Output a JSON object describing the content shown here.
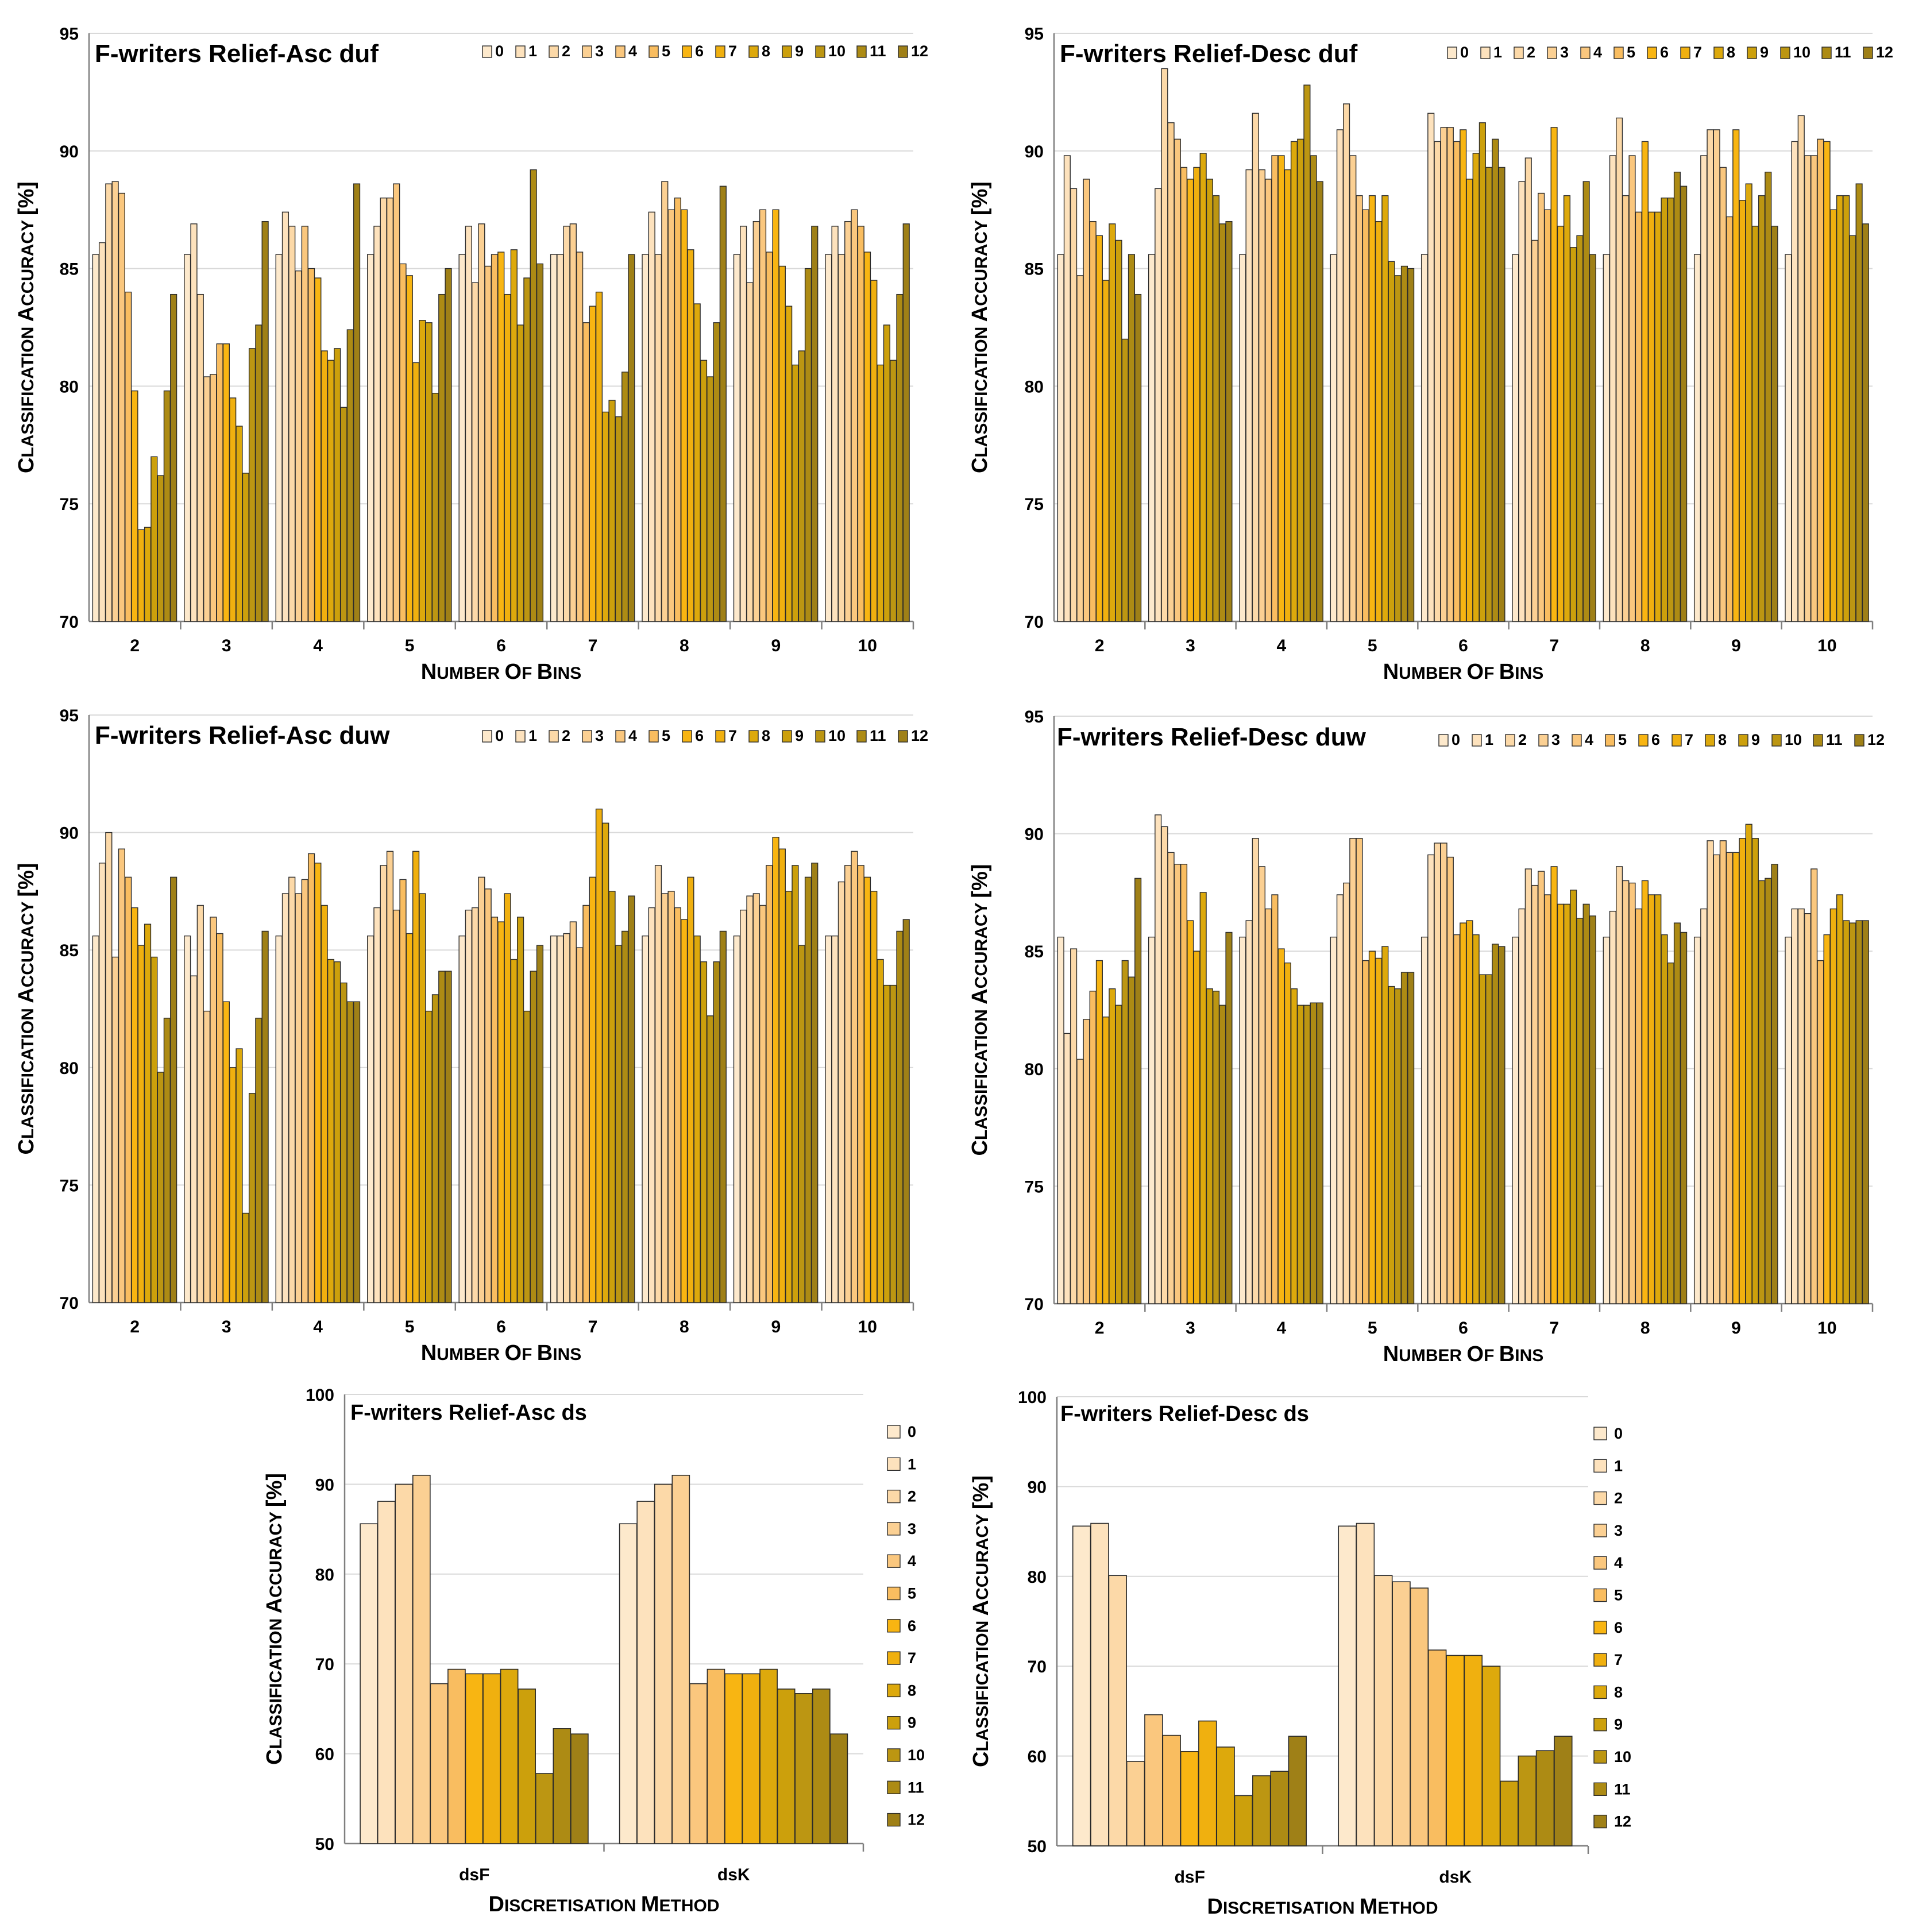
{
  "chart_data": [
    {
      "id": "asc-duf",
      "type": "bar",
      "title": "F-writers Relief-Asc duf",
      "xlabel": "Number of bins",
      "ylabel": "Classification accuracy [%]",
      "ylim": [
        70,
        95
      ],
      "yticks": [
        70,
        75,
        80,
        85,
        90,
        95
      ],
      "categories": [
        "2",
        "3",
        "4",
        "5",
        "6",
        "7",
        "8",
        "9",
        "10"
      ],
      "series_names": [
        "0",
        "1",
        "2",
        "3",
        "4",
        "5",
        "6",
        "7",
        "8",
        "9",
        "10",
        "11",
        "12"
      ],
      "values": [
        [
          85.6,
          86.1,
          88.6,
          88.7,
          88.2,
          84.0,
          79.8,
          73.9,
          74.0,
          77.0,
          76.2,
          79.8,
          83.9
        ],
        [
          85.6,
          86.9,
          83.9,
          80.4,
          80.5,
          81.8,
          81.8,
          79.5,
          78.3,
          76.3,
          81.6,
          82.6,
          87.0
        ],
        [
          85.6,
          87.4,
          86.8,
          84.9,
          86.8,
          85.0,
          84.6,
          81.5,
          81.1,
          81.6,
          79.1,
          82.4,
          88.6
        ],
        [
          85.6,
          86.8,
          88.0,
          88.0,
          88.6,
          85.2,
          84.7,
          81.0,
          82.8,
          82.7,
          79.7,
          83.9,
          85.0
        ],
        [
          85.6,
          86.8,
          84.4,
          86.9,
          85.1,
          85.6,
          85.7,
          83.9,
          85.8,
          82.6,
          84.6,
          89.2,
          85.2
        ],
        [
          85.6,
          85.6,
          86.8,
          86.9,
          85.7,
          82.7,
          83.4,
          84.0,
          78.9,
          79.4,
          78.7,
          80.6,
          85.6
        ],
        [
          85.6,
          87.4,
          85.6,
          88.7,
          87.5,
          88.0,
          87.5,
          85.8,
          83.5,
          81.1,
          80.4,
          82.7,
          88.5
        ],
        [
          85.6,
          86.8,
          84.4,
          87.0,
          87.5,
          85.7,
          87.5,
          85.1,
          83.4,
          80.9,
          81.5,
          85.0,
          86.8
        ],
        [
          85.6,
          86.8,
          85.6,
          87.0,
          87.5,
          86.8,
          85.7,
          84.5,
          80.9,
          82.6,
          81.1,
          83.9,
          86.9
        ]
      ]
    },
    {
      "id": "desc-duf",
      "type": "bar",
      "title": "F-writers Relief-Desc duf",
      "xlabel": "Number of bins",
      "ylabel": "Classification accuracy [%]",
      "ylim": [
        70,
        95
      ],
      "yticks": [
        70,
        75,
        80,
        85,
        90,
        95
      ],
      "categories": [
        "2",
        "3",
        "4",
        "5",
        "6",
        "7",
        "8",
        "9",
        "10"
      ],
      "series_names": [
        "0",
        "1",
        "2",
        "3",
        "4",
        "5",
        "6",
        "7",
        "8",
        "9",
        "10",
        "11",
        "12"
      ],
      "values": [
        [
          85.6,
          89.8,
          88.4,
          84.7,
          88.8,
          87.0,
          86.4,
          84.5,
          86.9,
          86.2,
          82.0,
          85.6,
          83.9
        ],
        [
          85.6,
          88.4,
          93.5,
          91.2,
          90.5,
          89.3,
          88.8,
          89.3,
          89.9,
          88.8,
          88.1,
          86.9,
          87.0
        ],
        [
          85.6,
          89.2,
          91.6,
          89.2,
          88.8,
          89.8,
          89.8,
          89.2,
          90.4,
          90.5,
          92.8,
          89.8,
          88.7
        ],
        [
          85.6,
          90.9,
          92.0,
          89.8,
          88.1,
          87.5,
          88.1,
          87.0,
          88.1,
          85.3,
          84.7,
          85.1,
          85.0
        ],
        [
          85.6,
          91.6,
          90.4,
          91.0,
          91.0,
          90.4,
          90.9,
          88.8,
          89.9,
          91.2,
          89.3,
          90.5,
          89.3
        ],
        [
          85.6,
          88.7,
          89.7,
          86.2,
          88.2,
          87.5,
          91.0,
          86.8,
          88.1,
          85.9,
          86.4,
          88.7,
          85.6
        ],
        [
          85.6,
          89.8,
          91.4,
          88.1,
          89.8,
          87.4,
          90.4,
          87.4,
          87.4,
          88.0,
          88.0,
          89.1,
          88.5
        ],
        [
          85.6,
          89.8,
          90.9,
          90.9,
          89.3,
          87.2,
          90.9,
          87.9,
          88.6,
          86.8,
          88.1,
          89.1,
          86.8
        ],
        [
          85.6,
          90.4,
          91.5,
          89.8,
          89.8,
          90.5,
          90.4,
          87.5,
          88.1,
          88.1,
          86.4,
          88.6,
          86.9
        ]
      ]
    },
    {
      "id": "asc-duw",
      "type": "bar",
      "title": "F-writers Relief-Asc duw",
      "xlabel": "Number of bins",
      "ylabel": "Classification accuracy [%]",
      "ylim": [
        70,
        95
      ],
      "yticks": [
        70,
        75,
        80,
        85,
        90,
        95
      ],
      "categories": [
        "2",
        "3",
        "4",
        "5",
        "6",
        "7",
        "8",
        "9",
        "10"
      ],
      "series_names": [
        "0",
        "1",
        "2",
        "3",
        "4",
        "5",
        "6",
        "7",
        "8",
        "9",
        "10",
        "11",
        "12"
      ],
      "values": [
        [
          85.6,
          88.7,
          90.0,
          84.7,
          89.3,
          88.1,
          86.8,
          85.2,
          86.1,
          84.7,
          79.8,
          82.1,
          88.1
        ],
        [
          85.6,
          83.9,
          86.9,
          82.4,
          86.4,
          85.7,
          82.8,
          80.0,
          80.8,
          73.8,
          78.9,
          82.1,
          85.8
        ],
        [
          85.6,
          87.4,
          88.1,
          87.4,
          88.0,
          89.1,
          88.7,
          86.9,
          84.6,
          84.5,
          83.6,
          82.8,
          82.8
        ],
        [
          85.6,
          86.8,
          88.6,
          89.2,
          86.7,
          88.0,
          85.7,
          89.2,
          87.4,
          82.4,
          83.1,
          84.1,
          84.1
        ],
        [
          85.6,
          86.7,
          86.8,
          88.1,
          87.6,
          86.4,
          86.2,
          87.4,
          84.6,
          86.4,
          82.4,
          84.1,
          85.2
        ],
        [
          85.6,
          85.6,
          85.7,
          86.2,
          85.1,
          86.9,
          88.1,
          91.0,
          90.4,
          87.5,
          85.2,
          85.8,
          87.3
        ],
        [
          85.6,
          86.8,
          88.6,
          87.4,
          87.5,
          86.8,
          86.3,
          88.1,
          85.6,
          84.5,
          82.2,
          84.5,
          85.8
        ],
        [
          85.6,
          86.7,
          87.3,
          87.4,
          86.9,
          88.6,
          89.8,
          89.3,
          87.5,
          88.6,
          85.2,
          88.1,
          88.7
        ],
        [
          85.6,
          85.6,
          87.9,
          88.6,
          89.2,
          88.6,
          88.1,
          87.5,
          84.6,
          83.5,
          83.5,
          85.8,
          86.3
        ]
      ]
    },
    {
      "id": "desc-duw",
      "type": "bar",
      "title": "F-writers Relief-Desc duw",
      "xlabel": "Number of bins",
      "ylabel": "Classification accuracy [%]",
      "ylim": [
        70,
        95
      ],
      "yticks": [
        70,
        75,
        80,
        85,
        90,
        95
      ],
      "categories": [
        "2",
        "3",
        "4",
        "5",
        "6",
        "7",
        "8",
        "9",
        "10"
      ],
      "series_names": [
        "0",
        "1",
        "2",
        "3",
        "4",
        "5",
        "6",
        "7",
        "8",
        "9",
        "10",
        "11",
        "12"
      ],
      "values": [
        [
          85.6,
          81.5,
          85.1,
          80.4,
          82.1,
          83.3,
          84.6,
          82.2,
          83.4,
          82.7,
          84.6,
          83.9,
          88.1
        ],
        [
          85.6,
          90.8,
          90.3,
          89.2,
          88.7,
          88.7,
          86.3,
          85.0,
          87.5,
          83.4,
          83.3,
          82.7,
          85.8
        ],
        [
          85.6,
          86.3,
          89.8,
          88.6,
          86.8,
          87.4,
          85.1,
          84.5,
          83.4,
          82.7,
          82.7,
          82.8,
          82.8
        ],
        [
          85.6,
          87.4,
          87.9,
          89.8,
          89.8,
          84.6,
          85.0,
          84.7,
          85.2,
          83.5,
          83.4,
          84.1,
          84.1
        ],
        [
          85.6,
          89.1,
          89.6,
          89.6,
          89.0,
          85.7,
          86.2,
          86.3,
          85.7,
          84.0,
          84.0,
          85.3,
          85.2
        ],
        [
          85.6,
          86.8,
          88.5,
          87.8,
          88.4,
          87.4,
          88.6,
          87.0,
          87.0,
          87.6,
          86.4,
          87.0,
          86.5
        ],
        [
          85.6,
          86.7,
          88.6,
          88.0,
          87.9,
          86.8,
          88.0,
          87.4,
          87.4,
          85.7,
          84.5,
          86.2,
          85.8
        ],
        [
          85.6,
          86.8,
          89.7,
          89.1,
          89.7,
          89.2,
          89.2,
          89.8,
          90.4,
          89.8,
          88.0,
          88.1,
          88.7
        ],
        [
          85.6,
          86.8,
          86.8,
          86.6,
          88.5,
          84.6,
          85.7,
          86.8,
          87.4,
          86.3,
          86.2,
          86.3,
          86.3
        ]
      ]
    },
    {
      "id": "asc-ds",
      "type": "bar",
      "title": "F-writers Relief-Asc ds",
      "xlabel": "Discretisation method",
      "ylabel": "Classification accuracy [%]",
      "ylim": [
        50,
        100
      ],
      "yticks": [
        50,
        60,
        70,
        80,
        90,
        100
      ],
      "categories": [
        "dsF",
        "dsK"
      ],
      "series_names": [
        "0",
        "1",
        "2",
        "3",
        "4",
        "5",
        "6",
        "7",
        "8",
        "9",
        "10",
        "11",
        "12"
      ],
      "values": [
        [
          85.6,
          88.1,
          90.0,
          91.0,
          67.8,
          69.4,
          68.9,
          68.9,
          69.4,
          67.2,
          57.8,
          62.8,
          62.2
        ],
        [
          85.6,
          88.1,
          90.0,
          91.0,
          67.8,
          69.4,
          68.9,
          68.9,
          69.4,
          67.2,
          66.7,
          67.2,
          62.2
        ]
      ]
    },
    {
      "id": "desc-ds",
      "type": "bar",
      "title": "F-writers Relief-Desc ds",
      "xlabel": "Discretisation method",
      "ylabel": "Classification accuracy [%]",
      "ylim": [
        50,
        100
      ],
      "yticks": [
        50,
        60,
        70,
        80,
        90,
        100
      ],
      "categories": [
        "dsF",
        "dsK"
      ],
      "series_names": [
        "0",
        "1",
        "2",
        "3",
        "4",
        "5",
        "6",
        "7",
        "8",
        "9",
        "10",
        "11",
        "12"
      ],
      "values": [
        [
          85.6,
          85.9,
          80.1,
          59.4,
          64.6,
          62.3,
          60.5,
          63.9,
          61.0,
          55.6,
          57.8,
          58.3,
          62.2
        ],
        [
          85.6,
          85.9,
          80.1,
          79.4,
          78.7,
          71.8,
          71.2,
          71.2,
          70.0,
          57.2,
          60.0,
          60.6,
          62.2
        ]
      ]
    }
  ],
  "palette": {
    "fills": [
      "#fde9cc",
      "#fde2bd",
      "#fcd9a8",
      "#fbd093",
      "#fac77e",
      "#f9bd60",
      "#f8b512",
      "#f0b00f",
      "#dda90c",
      "#cca00c",
      "#bc9612",
      "#ad8b14",
      "#9f8017"
    ],
    "stroke": "#2b2b2b",
    "grid": "#d9d9d9",
    "axis": "#7f7f7f"
  }
}
